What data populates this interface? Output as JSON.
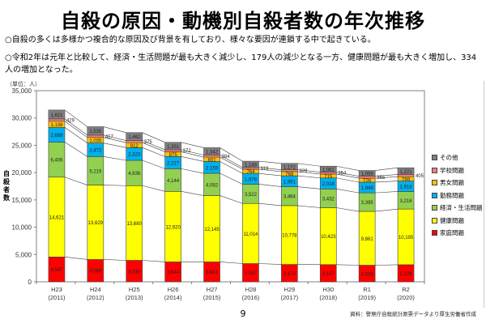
{
  "title": "自殺の原因・動機別自殺者数の年次推移",
  "notes": [
    "○自殺の多くは多様かつ複合的な原因及び背景を有しており、様々な要因が連鎖する中で起きている。",
    "○令和2年は元年と比較して、経済・生活問題が最も大きく減少し、179人の減少となる一方、健康問題が最も大きく増加し、334人の増加となった。"
  ],
  "unit_label": "（単位：人）",
  "y_axis_label": "自殺者数",
  "page_number": "9",
  "source": "資料：警察庁自殺統計原票データより厚生労働省作成",
  "chart_data": {
    "type": "bar",
    "stacked": true,
    "title": "自殺の原因・動機別自殺者数の年次推移",
    "xlabel": "",
    "ylabel": "自殺者数",
    "ylim": [
      0,
      35000
    ],
    "yticks": [
      0,
      5000,
      10000,
      15000,
      20000,
      25000,
      30000,
      35000
    ],
    "ytick_labels": [
      "0",
      "5,000",
      "10,000",
      "15,000",
      "20,000",
      "25,000",
      "30,000",
      "35,000"
    ],
    "categories": [
      "H23\n(2011)",
      "H24\n(2012)",
      "H25\n(2013)",
      "H26\n(2014)",
      "H27\n(2015)",
      "H28\n(2016)",
      "H29\n(2017)",
      "H30\n(2018)",
      "R1\n(2019)",
      "R2\n(2020)"
    ],
    "category_top": [
      "H23",
      "H24",
      "H25",
      "H26",
      "H27",
      "H28",
      "H29",
      "H30",
      "R1",
      "R2"
    ],
    "category_bottom": [
      "(2011)",
      "(2012)",
      "(2013)",
      "(2014)",
      "(2015)",
      "(2016)",
      "(2017)",
      "(2018)",
      "(2019)",
      "(2020)"
    ],
    "legend_position": "right",
    "series": [
      {
        "name": "家庭問題",
        "color": "#ff0000",
        "values": [
          4547,
          4089,
          3930,
          3644,
          3641,
          3337,
          3179,
          3147,
          3039,
          3128
        ],
        "label_inside": true
      },
      {
        "name": "健康問題",
        "color": "#ffff00",
        "values": [
          14621,
          13629,
          13680,
          12920,
          12145,
          11014,
          10778,
          10423,
          9861,
          10195
        ],
        "label_inside": true
      },
      {
        "name": "経済・生活問題",
        "color": "#92d050",
        "values": [
          6406,
          5219,
          4636,
          4144,
          4082,
          3522,
          3464,
          3432,
          3395,
          3216
        ],
        "label_inside": true
      },
      {
        "name": "勤務問題",
        "color": "#00b0f0",
        "values": [
          2689,
          2472,
          2323,
          2227,
          2159,
          1978,
          1991,
          2018,
          1949,
          1918
        ],
        "label_inside": true
      },
      {
        "name": "男女問題",
        "color": "#ffc000",
        "values": [
          1138,
          1035,
          912,
          875,
          801,
          764,
          768,
          715,
          726,
          799
        ],
        "label_inside": true
      },
      {
        "name": "学校問題",
        "color": "#ff7c80",
        "values": [
          429,
          417,
          375,
          372,
          384,
          319,
          329,
          354,
          355,
          405
        ],
        "label_inside": false
      },
      {
        "name": "その他",
        "color": "#808080",
        "values": [
          1621,
          1535,
          1462,
          1351,
          1342,
          1148,
          1172,
          1081,
          1056,
          1221
        ],
        "label_inside": true
      }
    ],
    "legend_order": [
      "その他",
      "学校問題",
      "男女問題",
      "勤務問題",
      "経済・生活問題",
      "健康問題",
      "家庭問題"
    ],
    "grid": false,
    "series_lines": true
  }
}
